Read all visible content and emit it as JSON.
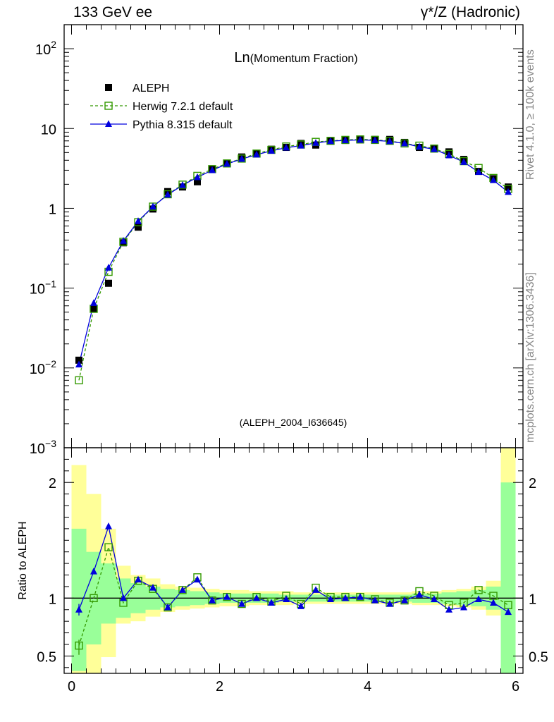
{
  "header": {
    "left": "133 GeV ee",
    "right": "γ*/Z (Hadronic)"
  },
  "side_labels": {
    "rivet": "Rivet 4.1.0, ≥ 100k events",
    "mcplots": "mcplots.cern.ch [arXiv:1306.3436]"
  },
  "colors": {
    "data": "#000000",
    "herwig": "#339900",
    "pythia": "#0000dd",
    "band_inner": "#99ff99",
    "band_outer": "#ffff99"
  },
  "chart_data": [
    {
      "type": "scatter",
      "panel": "main",
      "title_main": "Ln",
      "title_sub": "(Momentum Fraction)",
      "yscale": "log",
      "ylim": [
        0.001,
        200
      ],
      "xlim": [
        -0.1,
        6.1
      ],
      "ytick_labels": [
        {
          "value": 0.001,
          "base": "10",
          "exp": "−3"
        },
        {
          "value": 0.01,
          "base": "10",
          "exp": "−2"
        },
        {
          "value": 0.1,
          "base": "10",
          "exp": "−1"
        },
        {
          "value": 1,
          "base": "1",
          "exp": ""
        },
        {
          "value": 10,
          "base": "10",
          "exp": ""
        },
        {
          "value": 100,
          "base": "10",
          "exp": "2"
        }
      ],
      "watermark": "(ALEPH_2004_I636645)",
      "legend_position": "top-left",
      "x": [
        0.1,
        0.3,
        0.5,
        0.7,
        0.9,
        1.1,
        1.3,
        1.5,
        1.7,
        1.9,
        2.1,
        2.3,
        2.5,
        2.7,
        2.9,
        3.1,
        3.3,
        3.5,
        3.7,
        3.9,
        4.1,
        4.3,
        4.5,
        4.7,
        4.9,
        5.1,
        5.3,
        5.5,
        5.7,
        5.9
      ],
      "series": [
        {
          "name": "ALEPH",
          "key": "data",
          "values": [
            0.0125,
            0.055,
            0.115,
            0.37,
            0.58,
            0.98,
            1.62,
            1.85,
            2.15,
            3.1,
            3.6,
            4.4,
            4.8,
            5.5,
            5.8,
            6.5,
            6.2,
            7.0,
            7.1,
            7.2,
            7.3,
            7.3,
            6.7,
            5.8,
            5.6,
            5.1,
            4.1,
            2.9,
            2.35,
            1.85
          ]
        },
        {
          "name": "Herwig 7.2.1 default",
          "key": "herwig",
          "values": [
            0.007,
            0.055,
            0.16,
            0.38,
            0.67,
            1.05,
            1.5,
            1.98,
            2.55,
            3.1,
            3.65,
            4.2,
            4.85,
            5.4,
            5.95,
            6.3,
            6.8,
            7.0,
            7.2,
            7.3,
            7.2,
            7.0,
            6.5,
            6.1,
            5.6,
            4.8,
            3.9,
            3.2,
            2.4,
            1.75
          ]
        },
        {
          "name": "Pythia 8.315 default",
          "key": "pythia",
          "values": [
            0.011,
            0.065,
            0.18,
            0.39,
            0.69,
            1.05,
            1.48,
            1.95,
            2.45,
            3.0,
            3.6,
            4.15,
            4.7,
            5.25,
            5.75,
            6.1,
            6.6,
            6.95,
            7.1,
            7.2,
            7.1,
            6.9,
            6.5,
            5.9,
            5.5,
            4.6,
            3.8,
            2.85,
            2.25,
            1.6
          ]
        }
      ]
    },
    {
      "type": "line",
      "panel": "ratio",
      "ylabel": "Ratio to ALEPH",
      "ylim": [
        0.35,
        2.3
      ],
      "xlim": [
        -0.1,
        6.1
      ],
      "yticks": [
        0.5,
        1,
        2
      ],
      "xticks": [
        0,
        2,
        4,
        6
      ],
      "x": [
        0.1,
        0.3,
        0.5,
        0.7,
        0.9,
        1.1,
        1.3,
        1.5,
        1.7,
        1.9,
        2.1,
        2.3,
        2.5,
        2.7,
        2.9,
        3.1,
        3.3,
        3.5,
        3.7,
        3.9,
        4.1,
        4.3,
        4.5,
        4.7,
        4.9,
        5.1,
        5.3,
        5.5,
        5.7,
        5.9
      ],
      "band_edges": [
        0,
        0.2,
        0.4,
        0.6,
        0.8,
        1.0,
        1.2,
        1.4,
        1.6,
        1.8,
        2.0,
        2.2,
        2.4,
        2.6,
        2.8,
        3.0,
        3.2,
        3.4,
        3.6,
        3.8,
        4.0,
        4.2,
        4.4,
        4.6,
        4.8,
        5.0,
        5.2,
        5.4,
        5.6,
        5.8,
        6.0
      ],
      "band_inner": [
        [
          0.37,
          1.6
        ],
        [
          0.6,
          1.4
        ],
        [
          0.78,
          1.3
        ],
        [
          0.83,
          1.17
        ],
        [
          0.87,
          1.13
        ],
        [
          0.9,
          1.1
        ],
        [
          0.92,
          1.08
        ],
        [
          0.93,
          1.07
        ],
        [
          0.94,
          1.06
        ],
        [
          0.95,
          1.05
        ],
        [
          0.96,
          1.04
        ],
        [
          0.96,
          1.04
        ],
        [
          0.96,
          1.04
        ],
        [
          0.96,
          1.04
        ],
        [
          0.97,
          1.03
        ],
        [
          0.97,
          1.03
        ],
        [
          0.97,
          1.03
        ],
        [
          0.97,
          1.03
        ],
        [
          0.97,
          1.03
        ],
        [
          0.97,
          1.03
        ],
        [
          0.97,
          1.03
        ],
        [
          0.97,
          1.03
        ],
        [
          0.97,
          1.03
        ],
        [
          0.96,
          1.04
        ],
        [
          0.96,
          1.04
        ],
        [
          0.95,
          1.05
        ],
        [
          0.94,
          1.06
        ],
        [
          0.93,
          1.07
        ],
        [
          0.9,
          1.1
        ],
        [
          0.35,
          2.0
        ]
      ],
      "band_outer": [
        [
          0.35,
          2.15
        ],
        [
          0.35,
          1.9
        ],
        [
          0.49,
          1.6
        ],
        [
          0.78,
          1.28
        ],
        [
          0.8,
          1.2
        ],
        [
          0.84,
          1.17
        ],
        [
          0.88,
          1.12
        ],
        [
          0.9,
          1.1
        ],
        [
          0.91,
          1.09
        ],
        [
          0.92,
          1.08
        ],
        [
          0.93,
          1.07
        ],
        [
          0.93,
          1.07
        ],
        [
          0.94,
          1.06
        ],
        [
          0.94,
          1.06
        ],
        [
          0.94,
          1.06
        ],
        [
          0.95,
          1.05
        ],
        [
          0.95,
          1.05
        ],
        [
          0.95,
          1.05
        ],
        [
          0.95,
          1.05
        ],
        [
          0.95,
          1.05
        ],
        [
          0.95,
          1.05
        ],
        [
          0.95,
          1.05
        ],
        [
          0.95,
          1.05
        ],
        [
          0.94,
          1.06
        ],
        [
          0.94,
          1.06
        ],
        [
          0.93,
          1.07
        ],
        [
          0.92,
          1.08
        ],
        [
          0.9,
          1.1
        ],
        [
          0.85,
          1.15
        ],
        [
          0.35,
          2.35
        ]
      ],
      "series": [
        {
          "name": "Herwig 7.2.1 default",
          "key": "herwig",
          "values": [
            0.59,
            1.0,
            1.44,
            0.96,
            1.15,
            1.08,
            0.92,
            1.07,
            1.18,
            0.98,
            1.01,
            0.95,
            1.01,
            0.97,
            1.02,
            0.95,
            1.09,
            1.01,
            1.01,
            1.01,
            0.99,
            0.96,
            0.98,
            1.06,
            1.02,
            0.94,
            0.96,
            1.07,
            1.02,
            0.94
          ],
          "err_low": [
            0.08,
            0,
            0,
            0,
            0,
            0,
            0,
            0,
            0,
            0,
            0,
            0,
            0,
            0,
            0,
            0,
            0,
            0,
            0,
            0,
            0,
            0,
            0,
            0,
            0,
            0,
            0,
            0,
            0,
            0
          ],
          "err_high": [
            0.05,
            0,
            0,
            0,
            0,
            0,
            0,
            0,
            0,
            0,
            0,
            0,
            0,
            0,
            0,
            0,
            0,
            0,
            0,
            0,
            0,
            0,
            0,
            0,
            0,
            0,
            0,
            0,
            0,
            0
          ]
        },
        {
          "name": "Pythia 8.315 default",
          "key": "pythia",
          "values": [
            0.9,
            1.23,
            1.62,
            1.0,
            1.16,
            1.09,
            0.92,
            1.07,
            1.16,
            0.98,
            1.01,
            0.95,
            1.0,
            0.96,
            0.99,
            0.93,
            1.07,
            0.99,
            1.0,
            1.01,
            0.98,
            0.95,
            0.98,
            1.03,
            0.99,
            0.9,
            0.92,
            0.99,
            0.96,
            0.88
          ],
          "err_low": [
            0.05,
            0,
            0,
            0,
            0,
            0,
            0,
            0,
            0,
            0,
            0,
            0,
            0,
            0,
            0,
            0,
            0,
            0,
            0,
            0,
            0,
            0,
            0,
            0,
            0,
            0,
            0,
            0,
            0,
            0
          ],
          "err_high": [
            0.05,
            0,
            0,
            0,
            0,
            0,
            0,
            0,
            0,
            0,
            0,
            0,
            0,
            0,
            0,
            0,
            0,
            0,
            0,
            0,
            0,
            0,
            0,
            0,
            0,
            0,
            0,
            0,
            0,
            0
          ]
        }
      ]
    }
  ]
}
